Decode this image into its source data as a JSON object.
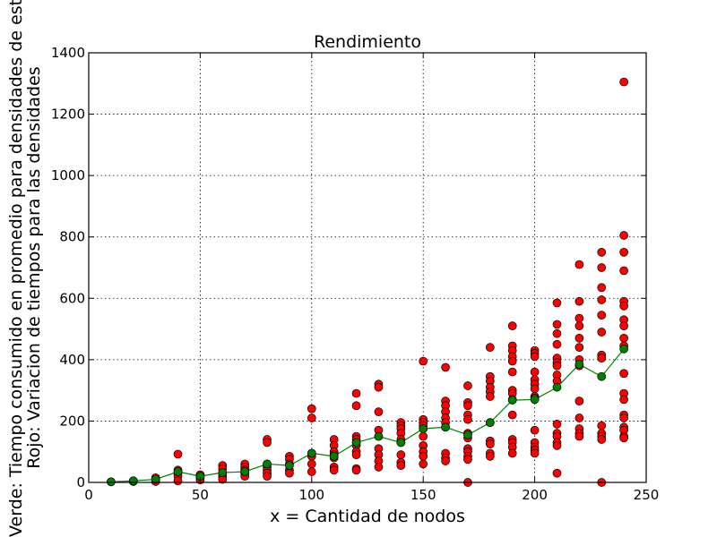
{
  "chart_data": {
    "type": "scatter",
    "title": "Rendimiento",
    "xlabel": "x = Cantidad de nodos",
    "ylabel_line1": "Verde: Tiempo consumido en promedio para densidades de este x",
    "ylabel_line2": "Rojo: Variacion de tiempos para las densidades",
    "xlim": [
      0,
      250
    ],
    "ylim": [
      0,
      1400
    ],
    "xticks": [
      0,
      50,
      100,
      150,
      200,
      250
    ],
    "yticks": [
      0,
      200,
      400,
      600,
      800,
      1000,
      1200,
      1400
    ],
    "grid": true,
    "colors": {
      "red": "#ff0000",
      "green": "#008000",
      "line": "#008000"
    },
    "series": [
      {
        "color": "red",
        "points": [
          [
            10,
            2
          ],
          [
            20,
            5
          ],
          [
            20,
            3
          ],
          [
            30,
            15
          ],
          [
            30,
            8
          ],
          [
            30,
            3
          ],
          [
            40,
            92
          ],
          [
            40,
            40
          ],
          [
            40,
            30
          ],
          [
            40,
            20
          ],
          [
            40,
            5
          ],
          [
            50,
            25
          ],
          [
            50,
            20
          ],
          [
            50,
            15
          ],
          [
            50,
            8
          ],
          [
            60,
            55
          ],
          [
            60,
            45
          ],
          [
            60,
            30
          ],
          [
            60,
            20
          ],
          [
            60,
            10
          ],
          [
            70,
            60
          ],
          [
            70,
            50
          ],
          [
            70,
            40
          ],
          [
            70,
            30
          ],
          [
            70,
            20
          ],
          [
            80,
            140
          ],
          [
            80,
            130
          ],
          [
            80,
            60
          ],
          [
            80,
            50
          ],
          [
            80,
            40
          ],
          [
            80,
            30
          ],
          [
            80,
            20
          ],
          [
            90,
            85
          ],
          [
            90,
            75
          ],
          [
            90,
            60
          ],
          [
            90,
            40
          ],
          [
            90,
            30
          ],
          [
            100,
            240
          ],
          [
            100,
            210
          ],
          [
            100,
            95
          ],
          [
            100,
            85
          ],
          [
            100,
            60
          ],
          [
            100,
            35
          ],
          [
            110,
            140
          ],
          [
            110,
            120
          ],
          [
            110,
            100
          ],
          [
            110,
            90
          ],
          [
            110,
            80
          ],
          [
            110,
            50
          ],
          [
            110,
            40
          ],
          [
            120,
            290
          ],
          [
            120,
            250
          ],
          [
            120,
            150
          ],
          [
            120,
            140
          ],
          [
            120,
            130
          ],
          [
            120,
            120
          ],
          [
            120,
            100
          ],
          [
            120,
            90
          ],
          [
            120,
            45
          ],
          [
            120,
            40
          ],
          [
            130,
            320
          ],
          [
            130,
            310
          ],
          [
            130,
            230
          ],
          [
            130,
            170
          ],
          [
            130,
            150
          ],
          [
            130,
            110
          ],
          [
            130,
            90
          ],
          [
            130,
            70
          ],
          [
            130,
            50
          ],
          [
            140,
            195
          ],
          [
            140,
            185
          ],
          [
            140,
            175
          ],
          [
            140,
            160
          ],
          [
            140,
            140
          ],
          [
            140,
            130
          ],
          [
            140,
            90
          ],
          [
            140,
            65
          ],
          [
            140,
            55
          ],
          [
            150,
            395
          ],
          [
            150,
            205
          ],
          [
            150,
            195
          ],
          [
            150,
            185
          ],
          [
            150,
            175
          ],
          [
            150,
            150
          ],
          [
            150,
            120
          ],
          [
            150,
            100
          ],
          [
            150,
            85
          ],
          [
            150,
            60
          ],
          [
            160,
            375
          ],
          [
            160,
            265
          ],
          [
            160,
            250
          ],
          [
            160,
            230
          ],
          [
            160,
            210
          ],
          [
            160,
            195
          ],
          [
            160,
            180
          ],
          [
            160,
            95
          ],
          [
            160,
            80
          ],
          [
            160,
            70
          ],
          [
            170,
            315
          ],
          [
            170,
            260
          ],
          [
            170,
            250
          ],
          [
            170,
            220
          ],
          [
            170,
            205
          ],
          [
            170,
            160
          ],
          [
            170,
            145
          ],
          [
            170,
            110
          ],
          [
            170,
            100
          ],
          [
            170,
            85
          ],
          [
            170,
            75
          ],
          [
            170,
            0
          ],
          [
            180,
            440
          ],
          [
            180,
            345
          ],
          [
            180,
            330
          ],
          [
            180,
            310
          ],
          [
            180,
            295
          ],
          [
            180,
            280
          ],
          [
            180,
            195
          ],
          [
            180,
            135
          ],
          [
            180,
            125
          ],
          [
            180,
            95
          ],
          [
            180,
            85
          ],
          [
            190,
            510
          ],
          [
            190,
            445
          ],
          [
            190,
            430
          ],
          [
            190,
            410
          ],
          [
            190,
            395
          ],
          [
            190,
            360
          ],
          [
            190,
            300
          ],
          [
            190,
            290
          ],
          [
            190,
            270
          ],
          [
            190,
            220
          ],
          [
            190,
            140
          ],
          [
            190,
            130
          ],
          [
            190,
            115
          ],
          [
            190,
            95
          ],
          [
            200,
            430
          ],
          [
            200,
            420
          ],
          [
            200,
            410
          ],
          [
            200,
            360
          ],
          [
            200,
            335
          ],
          [
            200,
            320
          ],
          [
            200,
            305
          ],
          [
            200,
            280
          ],
          [
            200,
            275
          ],
          [
            200,
            170
          ],
          [
            200,
            130
          ],
          [
            200,
            115
          ],
          [
            200,
            105
          ],
          [
            200,
            95
          ],
          [
            210,
            585
          ],
          [
            210,
            515
          ],
          [
            210,
            485
          ],
          [
            210,
            450
          ],
          [
            210,
            405
          ],
          [
            210,
            390
          ],
          [
            210,
            380
          ],
          [
            210,
            350
          ],
          [
            210,
            330
          ],
          [
            210,
            190
          ],
          [
            210,
            160
          ],
          [
            210,
            150
          ],
          [
            210,
            130
          ],
          [
            210,
            120
          ],
          [
            210,
            30
          ],
          [
            220,
            710
          ],
          [
            220,
            590
          ],
          [
            220,
            535
          ],
          [
            220,
            510
          ],
          [
            220,
            470
          ],
          [
            220,
            440
          ],
          [
            220,
            400
          ],
          [
            220,
            380
          ],
          [
            220,
            265
          ],
          [
            220,
            210
          ],
          [
            220,
            175
          ],
          [
            220,
            160
          ],
          [
            220,
            150
          ],
          [
            230,
            750
          ],
          [
            230,
            700
          ],
          [
            230,
            635
          ],
          [
            230,
            595
          ],
          [
            230,
            545
          ],
          [
            230,
            490
          ],
          [
            230,
            415
          ],
          [
            230,
            405
          ],
          [
            230,
            185
          ],
          [
            230,
            160
          ],
          [
            230,
            150
          ],
          [
            230,
            140
          ],
          [
            230,
            0
          ],
          [
            240,
            1305
          ],
          [
            240,
            805
          ],
          [
            240,
            750
          ],
          [
            240,
            690
          ],
          [
            240,
            590
          ],
          [
            240,
            575
          ],
          [
            240,
            530
          ],
          [
            240,
            510
          ],
          [
            240,
            470
          ],
          [
            240,
            445
          ],
          [
            240,
            355
          ],
          [
            240,
            290
          ],
          [
            240,
            270
          ],
          [
            240,
            220
          ],
          [
            240,
            210
          ],
          [
            240,
            180
          ],
          [
            240,
            170
          ],
          [
            240,
            150
          ],
          [
            240,
            145
          ]
        ]
      },
      {
        "color": "green",
        "style": "line-with-markers",
        "points": [
          [
            10,
            2
          ],
          [
            20,
            5
          ],
          [
            30,
            10
          ],
          [
            40,
            35
          ],
          [
            50,
            20
          ],
          [
            60,
            32
          ],
          [
            70,
            35
          ],
          [
            80,
            60
          ],
          [
            90,
            55
          ],
          [
            100,
            95
          ],
          [
            110,
            85
          ],
          [
            120,
            130
          ],
          [
            130,
            150
          ],
          [
            140,
            130
          ],
          [
            150,
            175
          ],
          [
            160,
            180
          ],
          [
            170,
            155
          ],
          [
            180,
            195
          ],
          [
            190,
            268
          ],
          [
            200,
            270
          ],
          [
            210,
            310
          ],
          [
            220,
            385
          ],
          [
            230,
            345
          ],
          [
            240,
            435
          ]
        ]
      }
    ]
  }
}
